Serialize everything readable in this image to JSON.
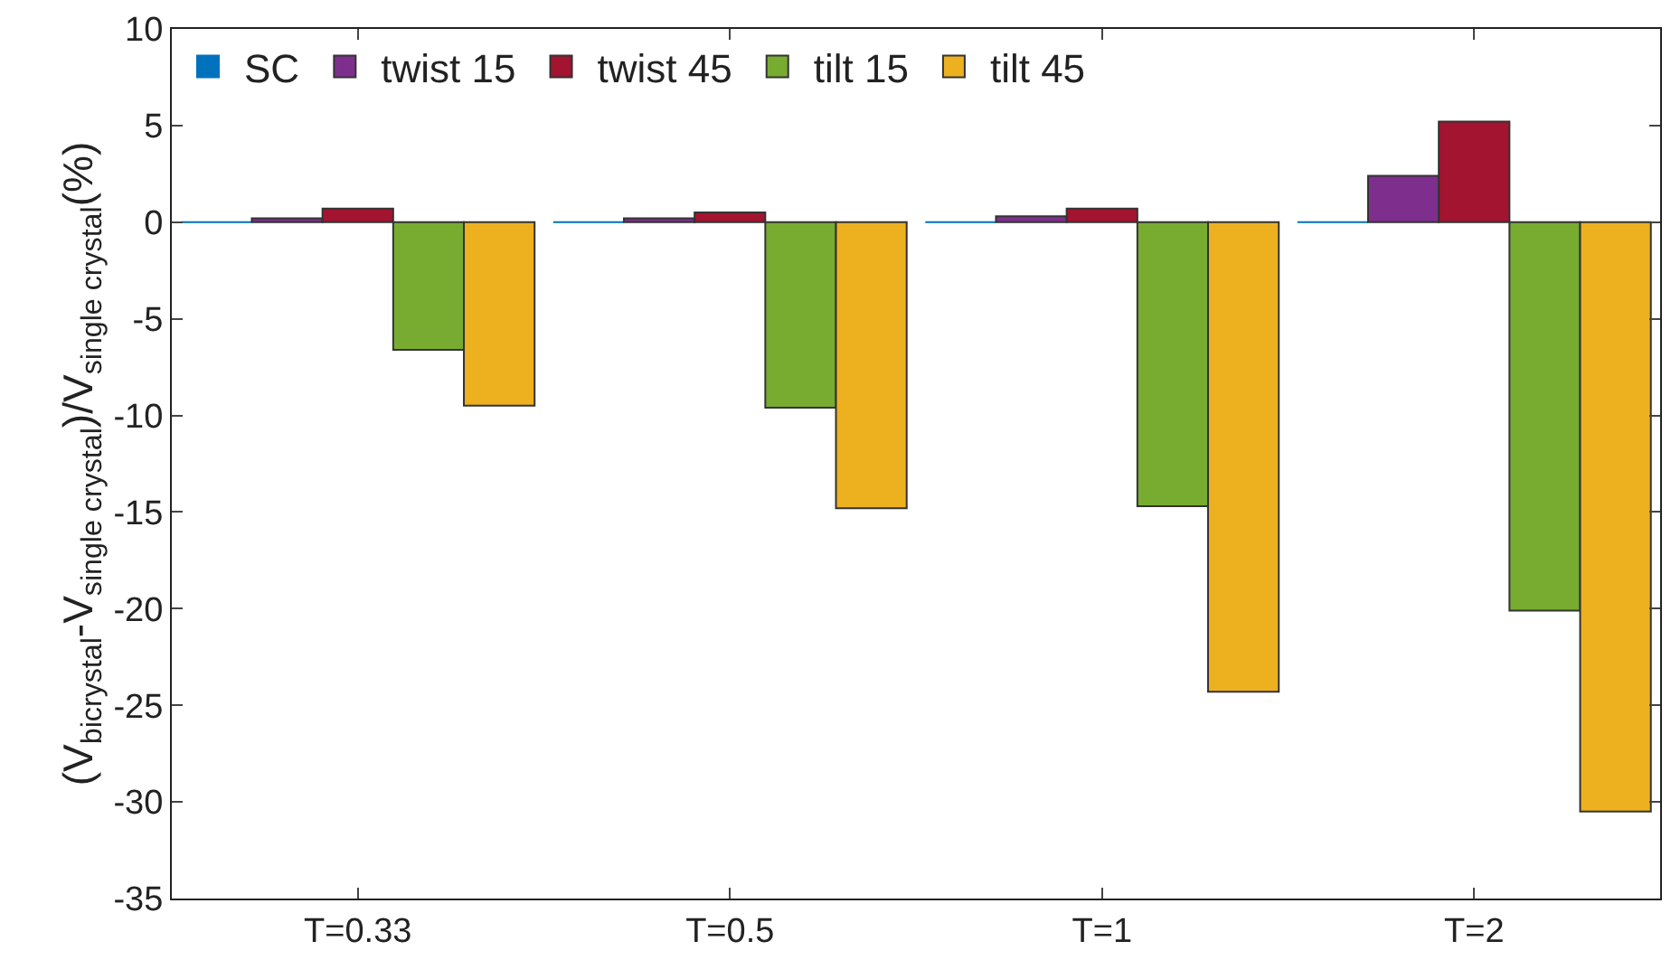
{
  "chart_data": {
    "type": "bar",
    "ylabel": "(V$_{bicrystal}$-V$_{single crystal}$)/V$_{single crystal}$(%)",
    "categories": [
      "T=0.33",
      "T=0.5",
      "T=1",
      "T=2"
    ],
    "series": [
      {
        "name": "SC",
        "color": "#0072bd",
        "values": [
          0,
          0,
          0,
          0
        ]
      },
      {
        "name": "twist 15",
        "color": "#7e2f8e",
        "values": [
          0.2,
          0.2,
          0.3,
          2.4
        ]
      },
      {
        "name": "twist 45",
        "color": "#a2142f",
        "values": [
          0.7,
          0.5,
          0.7,
          5.2
        ]
      },
      {
        "name": "tilt 15",
        "color": "#77ac30",
        "values": [
          -6.6,
          -9.6,
          -14.7,
          -20.1
        ]
      },
      {
        "name": "tilt 45",
        "color": "#edb120",
        "values": [
          -9.5,
          -14.8,
          -24.3,
          -30.5
        ]
      }
    ],
    "ylim": [
      -35,
      10
    ],
    "yticks": [
      -35,
      -30,
      -25,
      -20,
      -15,
      -10,
      -5,
      0,
      5,
      10
    ],
    "legend": "top left"
  }
}
